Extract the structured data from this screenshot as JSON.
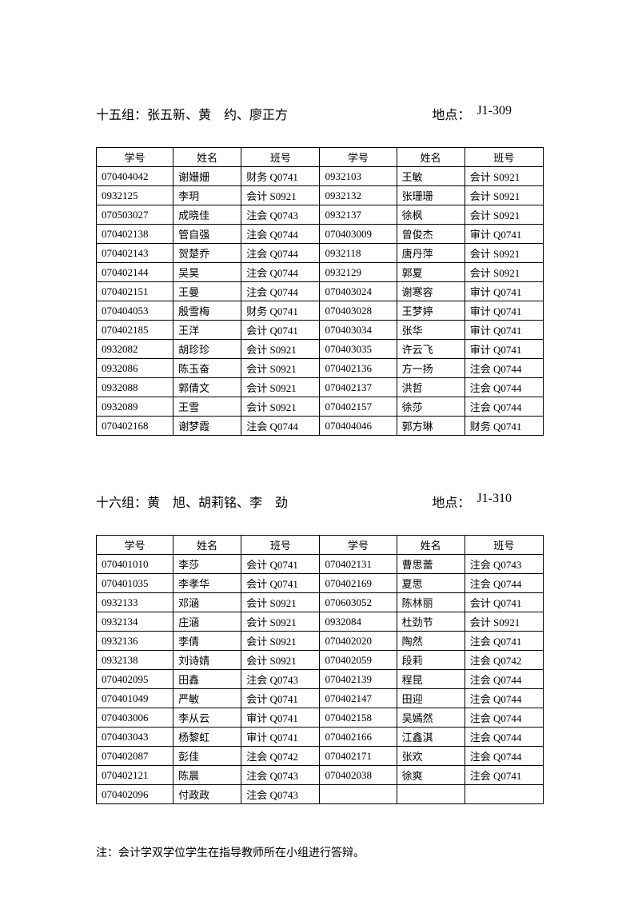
{
  "group15": {
    "title_prefix": "十五组：",
    "names": "张五新、黄　约、廖正方",
    "location_label": "地点：",
    "location_value": "J1-309",
    "headers": [
      "学号",
      "姓名",
      "班号",
      "学号",
      "姓名",
      "班号"
    ],
    "rows": [
      [
        "070404042",
        "谢姗姗",
        "财务 Q0741",
        "0932103",
        "王敏",
        "会计 S0921"
      ],
      [
        "0932125",
        "李玥",
        "会计 S0921",
        "0932132",
        "张珊珊",
        "会计 S0921"
      ],
      [
        "070503027",
        "成晓佳",
        "注会 Q0743",
        "0932137",
        "徐枫",
        "会计 S0921"
      ],
      [
        "070402138",
        "管自强",
        "注会 Q0744",
        "070403009",
        "曾俊杰",
        "审计 Q0741"
      ],
      [
        "070402143",
        "贺楚乔",
        "注会 Q0744",
        "0932118",
        "唐丹萍",
        "会计 S0921"
      ],
      [
        "070402144",
        "吴昊",
        "注会 Q0744",
        "0932129",
        "郭夏",
        "会计 S0921"
      ],
      [
        "070402151",
        "王曼",
        "注会 Q0744",
        "070403024",
        "谢寒容",
        "审计 Q0741"
      ],
      [
        "070404053",
        "殷雪梅",
        "财务 Q0741",
        "070403028",
        "王梦婷",
        "审计 Q0741"
      ],
      [
        "070402185",
        "王洋",
        "会计 Q0741",
        "070403034",
        "张华",
        "审计 Q0741"
      ],
      [
        "0932082",
        "胡珍珍",
        "会计 S0921",
        "070403035",
        "许云飞",
        "审计 Q0741"
      ],
      [
        "0932086",
        "陈玉奋",
        "会计 S0921",
        "070402136",
        "方一扬",
        "注会 Q0744"
      ],
      [
        "0932088",
        "郭倩文",
        "会计 S0921",
        "070402137",
        "洪哲",
        "注会 Q0744"
      ],
      [
        "0932089",
        "王雪",
        "会计 S0921",
        "070402157",
        "徐莎",
        "注会 Q0744"
      ],
      [
        "070402168",
        "谢梦霞",
        "注会 Q0744",
        "070404046",
        "郭方琳",
        "财务 Q0741"
      ]
    ]
  },
  "group16": {
    "title_prefix": "十六组：",
    "names": "黄　旭、胡莉铭、李　劲",
    "location_label": "地点：",
    "location_value": "J1-310",
    "headers": [
      "学号",
      "姓名",
      "班号",
      "学号",
      "姓名",
      "班号"
    ],
    "rows": [
      [
        "070401010",
        "李莎",
        "会计 Q0741",
        "070402131",
        "曹思蕾",
        "注会 Q0743"
      ],
      [
        "070401035",
        "李孝华",
        "会计 Q0741",
        "070402169",
        "夏思",
        "注会 Q0744"
      ],
      [
        "0932133",
        "邓涵",
        "会计 S0921",
        "070603052",
        "陈林丽",
        "会计 Q0741"
      ],
      [
        "0932134",
        "庄涵",
        "会计 S0921",
        "0932084",
        "杜劲节",
        "会计 S0921"
      ],
      [
        "0932136",
        "李倩",
        "会计 S0921",
        "070402020",
        "陶然",
        "注会 Q0741"
      ],
      [
        "0932138",
        "刘诗婧",
        "会计 S0921",
        "070402059",
        "段莉",
        "注会 Q0742"
      ],
      [
        "070402095",
        "田鑫",
        "注会 Q0743",
        "070402139",
        "程昆",
        "注会 Q0744"
      ],
      [
        "070401049",
        "严敏",
        "会计 Q0741",
        "070402147",
        "田迎",
        "注会 Q0744"
      ],
      [
        "070403006",
        "李从云",
        "审计 Q0741",
        "070402158",
        "吴嫣然",
        "注会 Q0744"
      ],
      [
        "070403043",
        "杨黎虹",
        "审计 Q0741",
        "070402166",
        "江鑫淇",
        "注会 Q0744"
      ],
      [
        "070402087",
        "彭佳",
        "注会 Q0742",
        "070402171",
        "张欢",
        "注会 Q0744"
      ],
      [
        "070402121",
        "陈晨",
        "注会 Q0743",
        "070402038",
        "徐爽",
        "注会 Q0741"
      ],
      [
        "070402096",
        "付政政",
        "注会 Q0743",
        "",
        "",
        ""
      ]
    ]
  },
  "footnote": "注：会计学双学位学生在指导教师所在小组进行答辩。"
}
